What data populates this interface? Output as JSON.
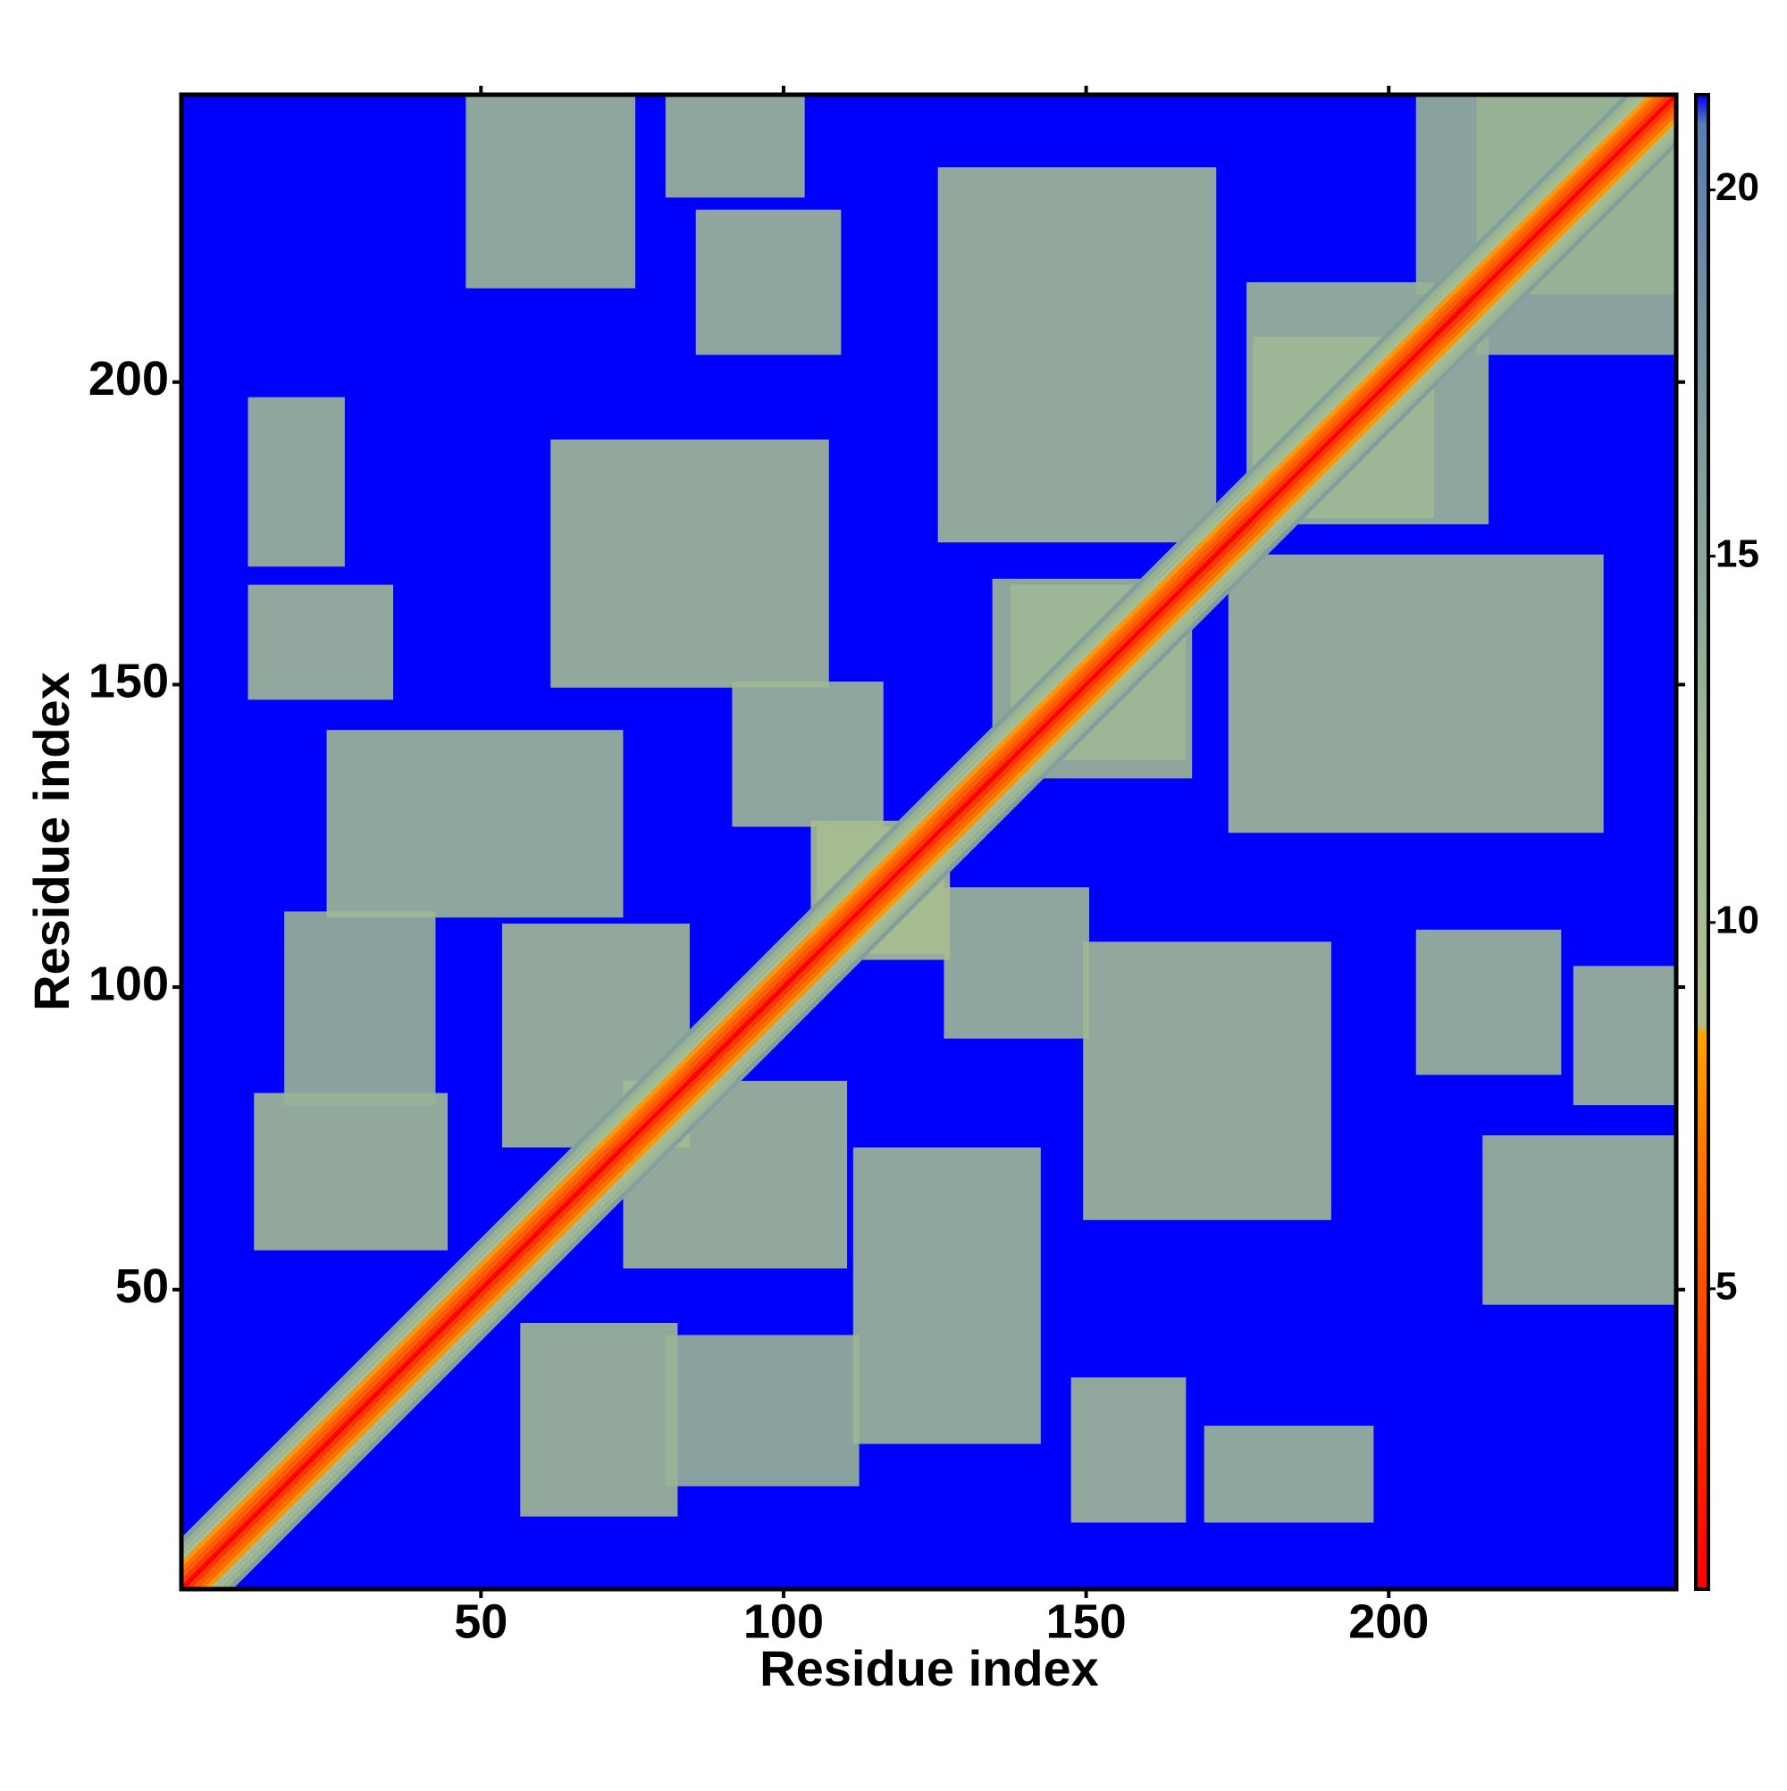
{
  "chart_data": {
    "type": "heatmap",
    "xlabel": "Residue index",
    "ylabel": "Residue index",
    "xlim": [
      0.5,
      247.5
    ],
    "ylim": [
      0.5,
      247.5
    ],
    "xticks": [
      50,
      100,
      150,
      200
    ],
    "yticks": [
      50,
      100,
      150,
      200
    ],
    "zlim": [
      0.9,
      21.3
    ],
    "zticks": [
      5,
      10,
      15,
      20
    ],
    "colorscale": [
      {
        "value": 0.9,
        "color": "#ff0000"
      },
      {
        "value": 4,
        "color": "#ff3a00"
      },
      {
        "value": 7,
        "color": "#ff7a00"
      },
      {
        "value": 8.5,
        "color": "#ffa500"
      },
      {
        "value": 8.6,
        "color": "#aebf8c"
      },
      {
        "value": 12,
        "color": "#9fb893"
      },
      {
        "value": 18,
        "color": "#7593a0"
      },
      {
        "value": 20.9,
        "color": "#5a7db2"
      },
      {
        "value": 21.3,
        "color": "#0000ff"
      }
    ],
    "background_value": 21.3,
    "symmetric": true,
    "diagonal": {
      "offsets": [
        0,
        1,
        2,
        3,
        4,
        5,
        6,
        7,
        8
      ],
      "values": [
        1,
        3.8,
        5.5,
        6.5,
        8,
        9.5,
        11,
        13,
        16
      ]
    },
    "contacts": [
      {
        "x": [
          12,
          27
        ],
        "y": [
          170,
          197
        ],
        "value": 12
      },
      {
        "x": [
          12,
          35
        ],
        "y": [
          148,
          166
        ],
        "value": 11.5
      },
      {
        "x": [
          13,
          44
        ],
        "y": [
          57,
          82
        ],
        "value": 11
      },
      {
        "x": [
          18,
          42
        ],
        "y": [
          81,
          112
        ],
        "value": 13
      },
      {
        "x": [
          25,
          73
        ],
        "y": [
          112,
          142
        ],
        "value": 12
      },
      {
        "x": [
          48,
          75
        ],
        "y": [
          216,
          248
        ],
        "value": 12
      },
      {
        "x": [
          81,
          103
        ],
        "y": [
          231,
          248
        ],
        "value": 12
      },
      {
        "x": [
          86,
          109
        ],
        "y": [
          205,
          228
        ],
        "value": 12
      },
      {
        "x": [
          54,
          84
        ],
        "y": [
          74,
          110
        ],
        "value": 11
      },
      {
        "x": [
          62,
          107
        ],
        "y": [
          150,
          190
        ],
        "value": 11
      },
      {
        "x": [
          92,
          116
        ],
        "y": [
          127,
          150
        ],
        "value": 12
      },
      {
        "x": [
          126,
          171
        ],
        "y": [
          174,
          235
        ],
        "value": 11
      },
      {
        "x": [
          135,
          166
        ],
        "y": [
          138,
          167
        ],
        "value": 12
      },
      {
        "x": [
          105,
          126
        ],
        "y": [
          106,
          127
        ],
        "value": 10
      },
      {
        "x": [
          177,
          207
        ],
        "y": [
          178,
          216
        ],
        "value": 12
      },
      {
        "x": [
          215,
          247
        ],
        "y": [
          205,
          248
        ],
        "value": 13
      }
    ]
  }
}
